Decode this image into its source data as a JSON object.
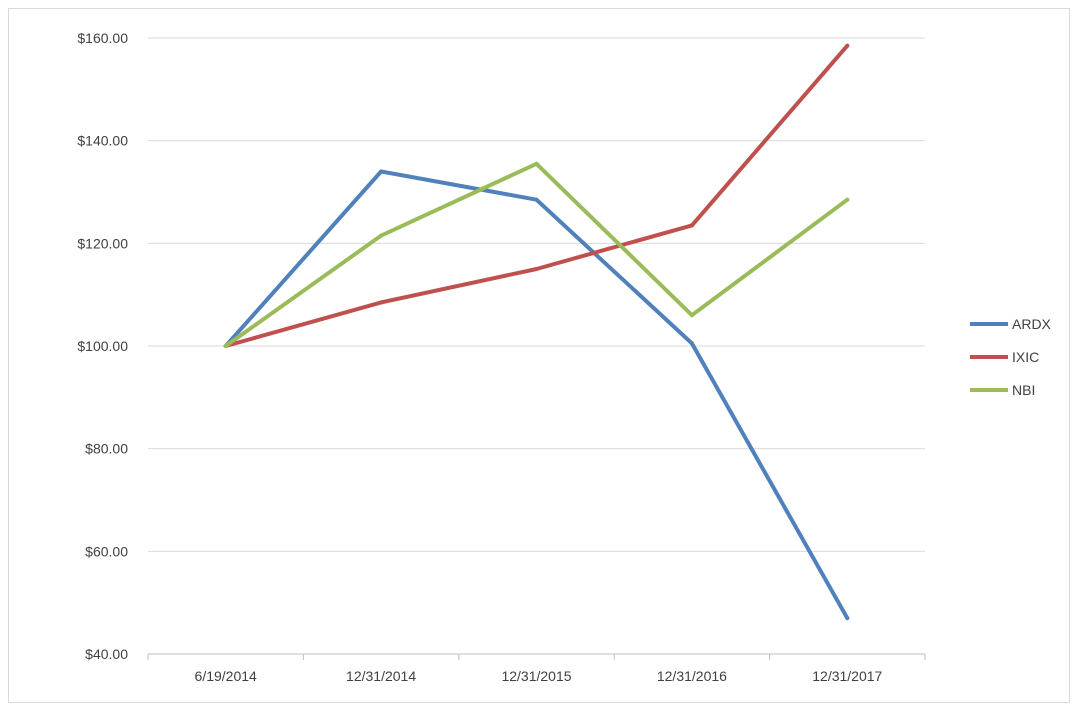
{
  "chart_data": {
    "type": "line",
    "title": "",
    "xlabel": "",
    "ylabel": "",
    "categories": [
      "6/19/2014",
      "12/31/2014",
      "12/31/2015",
      "12/31/2016",
      "12/31/2017"
    ],
    "y_ticks": [
      "$40.00",
      "$60.00",
      "$80.00",
      "$100.00",
      "$120.00",
      "$140.00",
      "$160.00"
    ],
    "ylim": [
      40,
      160
    ],
    "grid": true,
    "legend_position": "right",
    "series": [
      {
        "name": "ARDX",
        "color": "#4f81bd",
        "values": [
          100,
          134,
          128.5,
          100.5,
          47
        ]
      },
      {
        "name": "IXIC",
        "color": "#c0504d",
        "values": [
          100,
          108.5,
          115,
          123.5,
          158.5
        ]
      },
      {
        "name": "NBI",
        "color": "#9bbb59",
        "values": [
          100,
          121.5,
          135.5,
          106,
          128.5
        ]
      }
    ]
  }
}
